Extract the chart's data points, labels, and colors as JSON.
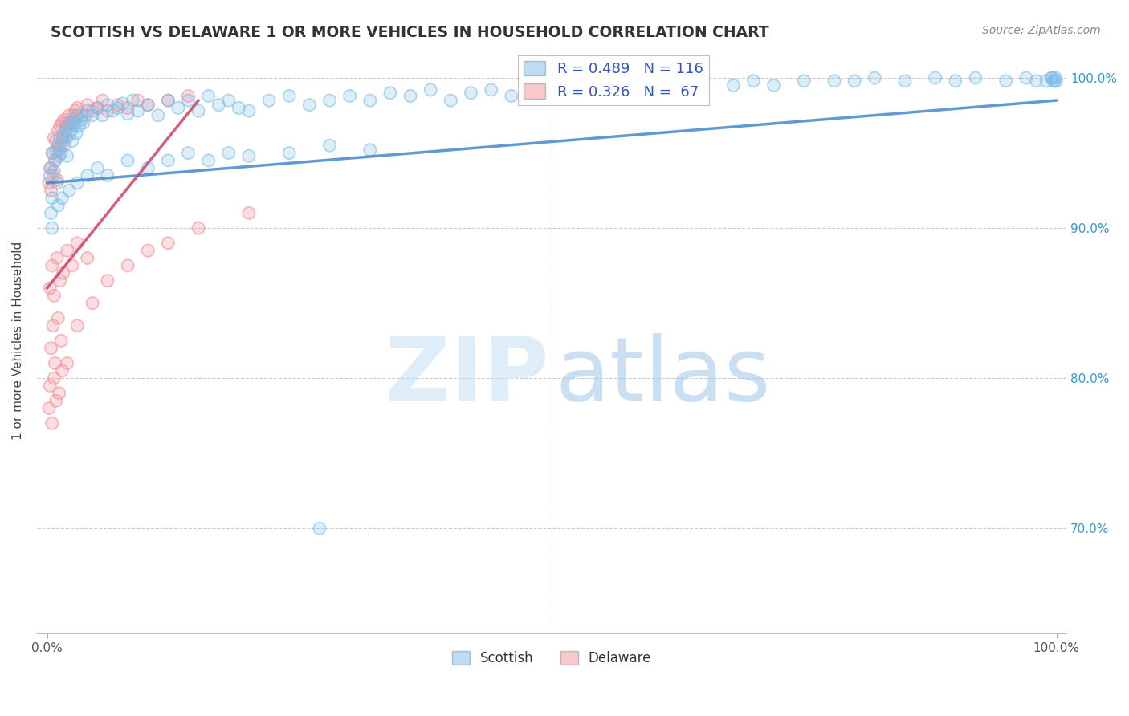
{
  "title": "SCOTTISH VS DELAWARE 1 OR MORE VEHICLES IN HOUSEHOLD CORRELATION CHART",
  "source_text": "Source: ZipAtlas.com",
  "ylabel": "1 or more Vehicles in Household",
  "blue_color": "#7bbde8",
  "pink_color": "#f4949c",
  "trendline_blue": "#4488cc",
  "trendline_pink": "#cc4466",
  "background_color": "#ffffff",
  "grid_color": "#cccccc",
  "right_label_color": "#3399cc",
  "title_color": "#333333",
  "source_color": "#888888",
  "legend_label_color": "#3355bb",
  "watermark_zip_color": "#c5dff5",
  "watermark_atlas_color": "#a0c8e8",
  "R_blue": 0.489,
  "N_blue": 116,
  "R_pink": 0.326,
  "N_pink": 67,
  "xlim": [
    -1,
    101
  ],
  "ylim": [
    63,
    102
  ],
  "ytick_vals": [
    70,
    80,
    90,
    100
  ],
  "xtick_vals": [
    0,
    100
  ],
  "scatter_blue_x": [
    0.3,
    0.4,
    0.5,
    0.6,
    0.7,
    0.8,
    0.9,
    1.0,
    1.1,
    1.2,
    1.3,
    1.4,
    1.5,
    1.6,
    1.7,
    1.8,
    1.9,
    2.0,
    2.1,
    2.2,
    2.3,
    2.4,
    2.5,
    2.6,
    2.7,
    2.8,
    2.9,
    3.0,
    3.2,
    3.4,
    3.6,
    3.8,
    4.0,
    4.5,
    5.0,
    5.5,
    6.0,
    6.5,
    7.0,
    7.5,
    8.0,
    8.5,
    9.0,
    10.0,
    11.0,
    12.0,
    13.0,
    14.0,
    15.0,
    16.0,
    17.0,
    18.0,
    19.0,
    20.0,
    22.0,
    24.0,
    26.0,
    28.0,
    30.0,
    32.0,
    34.0,
    36.0,
    38.0,
    40.0,
    42.0,
    44.0,
    46.0,
    48.0,
    50.0,
    52.0,
    55.0,
    58.0,
    60.0,
    62.0,
    65.0,
    68.0,
    70.0,
    72.0,
    75.0,
    78.0,
    80.0,
    82.0,
    85.0,
    88.0,
    90.0,
    92.0,
    95.0,
    97.0,
    98.0,
    99.0,
    99.5,
    99.8,
    99.9,
    100.0,
    99.6,
    99.7,
    27.0,
    0.5,
    0.4,
    1.1,
    1.5,
    2.2,
    3.0,
    4.0,
    5.0,
    6.0,
    8.0,
    10.0,
    12.0,
    14.0,
    16.0,
    18.0,
    20.0,
    24.0,
    28.0,
    32.0
  ],
  "scatter_blue_y": [
    93.5,
    94.0,
    92.0,
    95.0,
    93.8,
    94.5,
    95.2,
    93.0,
    95.5,
    94.8,
    96.0,
    95.0,
    95.8,
    96.2,
    95.5,
    96.5,
    96.0,
    94.8,
    96.8,
    96.2,
    97.0,
    96.5,
    95.8,
    97.2,
    96.8,
    97.0,
    96.3,
    97.5,
    96.8,
    97.2,
    97.0,
    97.5,
    97.8,
    97.5,
    98.0,
    97.5,
    98.2,
    97.8,
    98.0,
    98.3,
    97.6,
    98.5,
    97.8,
    98.2,
    97.5,
    98.5,
    98.0,
    98.5,
    97.8,
    98.8,
    98.2,
    98.5,
    98.0,
    97.8,
    98.5,
    98.8,
    98.2,
    98.5,
    98.8,
    98.5,
    99.0,
    98.8,
    99.2,
    98.5,
    99.0,
    99.2,
    98.8,
    99.5,
    98.8,
    99.0,
    99.2,
    99.5,
    99.0,
    99.5,
    99.8,
    99.5,
    99.8,
    99.5,
    99.8,
    99.8,
    99.8,
    100.0,
    99.8,
    100.0,
    99.8,
    100.0,
    99.8,
    100.0,
    99.8,
    99.8,
    100.0,
    99.8,
    100.0,
    99.8,
    100.0,
    99.8,
    70.0,
    90.0,
    91.0,
    91.5,
    92.0,
    92.5,
    93.0,
    93.5,
    94.0,
    93.5,
    94.5,
    94.0,
    94.5,
    95.0,
    94.5,
    95.0,
    94.8,
    95.0,
    95.5,
    95.2
  ],
  "scatter_pink_x": [
    0.2,
    0.3,
    0.4,
    0.5,
    0.6,
    0.7,
    0.8,
    0.9,
    1.0,
    1.1,
    1.2,
    1.3,
    1.4,
    1.5,
    1.6,
    1.7,
    1.8,
    1.9,
    2.0,
    2.2,
    2.4,
    2.6,
    2.8,
    3.0,
    3.5,
    4.0,
    4.5,
    5.0,
    5.5,
    6.0,
    7.0,
    8.0,
    9.0,
    10.0,
    12.0,
    14.0,
    0.3,
    0.5,
    0.7,
    1.0,
    1.3,
    1.6,
    2.0,
    2.5,
    3.0,
    4.0,
    0.4,
    0.6,
    0.8,
    1.1,
    1.4,
    0.2,
    0.3,
    0.5,
    0.7,
    0.9,
    1.2,
    1.5,
    2.0,
    3.0,
    4.5,
    6.0,
    8.0,
    10.0,
    12.0,
    15.0,
    20.0
  ],
  "scatter_pink_y": [
    93.0,
    94.0,
    92.5,
    95.0,
    93.5,
    96.0,
    94.5,
    95.8,
    93.2,
    96.5,
    95.2,
    96.8,
    95.5,
    97.0,
    96.0,
    97.2,
    96.5,
    97.0,
    96.8,
    97.5,
    97.0,
    97.5,
    97.8,
    98.0,
    97.5,
    98.2,
    97.8,
    98.0,
    98.5,
    97.8,
    98.2,
    98.0,
    98.5,
    98.2,
    98.5,
    98.8,
    86.0,
    87.5,
    85.5,
    88.0,
    86.5,
    87.0,
    88.5,
    87.5,
    89.0,
    88.0,
    82.0,
    83.5,
    81.0,
    84.0,
    82.5,
    78.0,
    79.5,
    77.0,
    80.0,
    78.5,
    79.0,
    80.5,
    81.0,
    83.5,
    85.0,
    86.5,
    87.5,
    88.5,
    89.0,
    90.0,
    91.0
  ]
}
